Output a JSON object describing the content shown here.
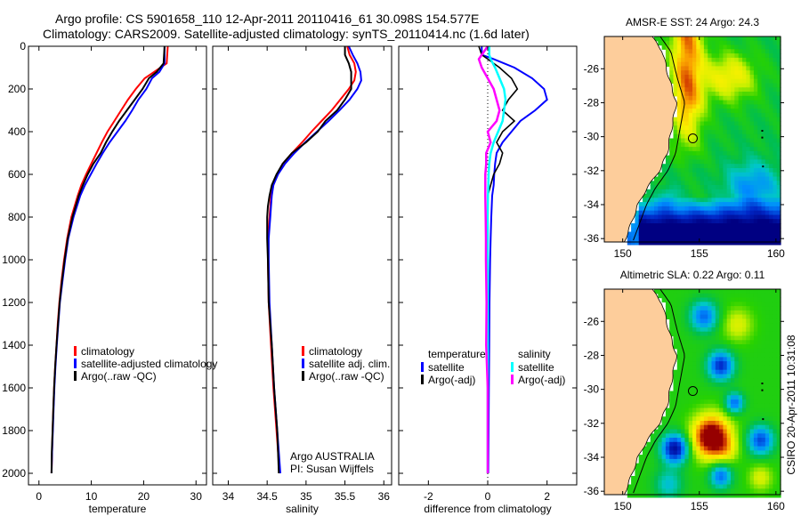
{
  "header": {
    "line1": "Argo profile: CS 5901658_110 12-Apr-2011 20110416_61 30.098S 154.577E",
    "line2": "Climatology: CARS2009. Satellite-adjusted climatology: synTS_20110414.nc (1.6d later)"
  },
  "colors": {
    "climatology": "#ff0000",
    "satellite": "#0000ff",
    "argo": "#000000",
    "sal_satellite": "#00ffff",
    "sal_argo": "#ff00ff",
    "land": "#fdcd9b"
  },
  "chart_data": [
    {
      "type": "line",
      "id": "temperature",
      "title": "",
      "xlabel": "temperature",
      "ylabel": "",
      "xlim": [
        -2,
        32
      ],
      "ylim": [
        2050,
        0
      ],
      "xticks": [
        "0",
        "10",
        "20",
        "30"
      ],
      "yticks": [
        "0",
        "200",
        "400",
        "600",
        "800",
        "1000",
        "1200",
        "1400",
        "1600",
        "1800",
        "2000"
      ],
      "depth": [
        0,
        80,
        120,
        150,
        200,
        250,
        300,
        350,
        400,
        450,
        500,
        550,
        600,
        650,
        700,
        800,
        900,
        1000,
        1100,
        1200,
        1300,
        1400,
        1500,
        1600,
        1700,
        1800,
        1900,
        2000
      ],
      "series": [
        {
          "name": "climatology",
          "values": [
            24.6,
            24.4,
            22.0,
            20.2,
            18.5,
            17.0,
            15.7,
            14.4,
            13.1,
            12.0,
            11.0,
            10.0,
            9.0,
            8.1,
            7.4,
            6.2,
            5.4,
            4.8,
            4.3,
            3.9,
            3.6,
            3.35,
            3.1,
            2.9,
            2.75,
            2.6,
            2.5,
            2.4
          ]
        },
        {
          "name": "satellite-adjusted climatology",
          "values": [
            24.0,
            24.0,
            23.0,
            21.6,
            20.5,
            19.0,
            17.8,
            16.5,
            15.0,
            13.5,
            12.2,
            11.0,
            9.9,
            8.8,
            7.9,
            6.6,
            5.6,
            5.0,
            4.5,
            4.0,
            3.7,
            3.4,
            3.15,
            2.95,
            2.8,
            2.65,
            2.5,
            2.4
          ]
        },
        {
          "name": "Argo(..raw -QC)",
          "values": [
            24.0,
            23.8,
            22.5,
            21.0,
            19.8,
            18.3,
            16.8,
            15.3,
            14.0,
            12.8,
            11.8,
            10.4,
            9.3,
            8.4,
            7.6,
            6.4,
            5.5,
            4.9,
            4.4,
            3.95,
            3.65,
            3.35,
            3.1,
            2.9,
            2.75,
            2.6,
            2.45,
            2.4
          ]
        }
      ],
      "legend": [
        "climatology",
        "satellite-adjusted climatology",
        "Argo(..raw -QC)"
      ],
      "legend_position": "center-right"
    },
    {
      "type": "line",
      "id": "salinity",
      "xlabel": "salinity",
      "xlim": [
        33.8,
        36.1
      ],
      "ylim": [
        2050,
        0
      ],
      "xticks": [
        "34",
        "34.5",
        "35",
        "35.5",
        "36"
      ],
      "depth": [
        0,
        40,
        80,
        120,
        160,
        200,
        250,
        300,
        350,
        400,
        450,
        500,
        550,
        600,
        650,
        700,
        750,
        800,
        900,
        1000,
        1200,
        1400,
        1600,
        1800,
        2000
      ],
      "series": [
        {
          "name": "climatology",
          "values": [
            35.53,
            35.56,
            35.62,
            35.64,
            35.62,
            35.55,
            35.44,
            35.33,
            35.2,
            35.07,
            34.95,
            34.82,
            34.7,
            34.63,
            34.58,
            34.55,
            34.54,
            34.53,
            34.51,
            34.51,
            34.52,
            34.55,
            34.58,
            34.62,
            34.66
          ]
        },
        {
          "name": "satellite adj. clim.",
          "values": [
            35.55,
            35.6,
            35.66,
            35.7,
            35.71,
            35.66,
            35.56,
            35.43,
            35.29,
            35.14,
            34.99,
            34.85,
            34.73,
            34.64,
            34.58,
            34.56,
            34.55,
            34.54,
            34.52,
            34.52,
            34.53,
            34.56,
            34.59,
            34.63,
            34.67
          ]
        },
        {
          "name": "Argo(..raw -QC)",
          "values": [
            35.5,
            35.5,
            35.55,
            35.58,
            35.58,
            35.58,
            35.5,
            35.4,
            35.25,
            35.15,
            35.0,
            34.82,
            34.7,
            34.62,
            34.56,
            34.53,
            34.51,
            34.5,
            34.5,
            34.51,
            34.52,
            34.56,
            34.59,
            34.63,
            34.65
          ]
        }
      ],
      "legend": [
        "climatology",
        "satellite adj. clim.",
        "Argo(..raw -QC)"
      ],
      "annotation": [
        "Argo AUSTRALIA",
        "PI: Susan Wijffels"
      ]
    },
    {
      "type": "line",
      "id": "difference",
      "xlabel": "difference from climatology",
      "xlim": [
        -3,
        3
      ],
      "ylim": [
        2050,
        0
      ],
      "xticks": [
        "-2",
        "0",
        "2"
      ],
      "depth": [
        0,
        40,
        60,
        100,
        150,
        200,
        250,
        300,
        350,
        400,
        450,
        500,
        550,
        600,
        650,
        700,
        800,
        900,
        1000,
        1200,
        1400,
        1600,
        1800,
        2000
      ],
      "series": [
        {
          "name": "temperature satellite",
          "group": "temperature",
          "values": [
            -0.2,
            -0.2,
            0.2,
            0.9,
            1.5,
            1.9,
            2.0,
            1.6,
            1.1,
            0.8,
            0.5,
            0.3,
            0.25,
            0.22,
            0.2,
            0.15,
            0.12,
            0.1,
            0.08,
            0.06,
            0.05,
            0.04,
            0.03,
            0.02
          ]
        },
        {
          "name": "temperature Argo(-adj)",
          "group": "temperature",
          "values": [
            -0.3,
            -0.2,
            0.0,
            0.4,
            0.8,
            1.0,
            0.7,
            0.5,
            0.9,
            0.5,
            0.3,
            0.5,
            0.4,
            0.2,
            0.1,
            0.0,
            0.0,
            -0.01,
            0.0,
            0.0,
            0.0,
            0.0,
            0.0,
            0.0
          ]
        },
        {
          "name": "salinity satellite",
          "group": "salinity",
          "values": [
            0.05,
            0.05,
            0.1,
            0.25,
            0.4,
            0.55,
            0.6,
            0.55,
            0.5,
            0.35,
            0.2,
            0.1,
            0.05,
            0.03,
            0.02,
            0.01,
            0.0,
            0.0,
            0.0,
            0.0,
            0.0,
            0.0,
            0.0,
            0.0
          ]
        },
        {
          "name": "salinity Argo(-adj)",
          "group": "salinity",
          "values": [
            0.0,
            -0.2,
            -0.3,
            -0.2,
            0.0,
            0.2,
            0.3,
            0.4,
            0.3,
            0.0,
            0.1,
            -0.05,
            -0.05,
            -0.08,
            -0.08,
            -0.08,
            -0.07,
            -0.06,
            -0.06,
            -0.04,
            -0.05,
            0.0,
            0.0,
            0.0
          ]
        }
      ],
      "legend": {
        "temperature": {
          "heading": "temperature",
          "items": [
            "satellite",
            "Argo(-adj)"
          ]
        },
        "salinity": {
          "heading": "salinity",
          "items": [
            "satellite",
            "Argo(-adj)"
          ]
        }
      },
      "zero_line": "dotted"
    },
    {
      "type": "heatmap",
      "id": "sst_map",
      "title": "AMSR-E SST: 24 Argo: 24.3",
      "xlim": [
        148.8,
        160.3
      ],
      "ylim": [
        -36.2,
        -24.1
      ],
      "xticks": [
        "150",
        "155",
        "160"
      ],
      "yticks": [
        "-26",
        "-28",
        "-30",
        "-32",
        "-34",
        "-36"
      ],
      "marker": {
        "lon": 154.577,
        "lat": -30.098
      }
    },
    {
      "type": "heatmap",
      "id": "sla_map",
      "title": "Altimetric SLA: 0.22 Argo: 0.11",
      "xlim": [
        148.8,
        160.3
      ],
      "ylim": [
        -36.2,
        -24.1
      ],
      "xticks": [
        "150",
        "155",
        "160"
      ],
      "yticks": [
        "-26",
        "-28",
        "-30",
        "-32",
        "-34",
        "-36"
      ],
      "marker": {
        "lon": 154.577,
        "lat": -30.098
      }
    }
  ],
  "footer_stamp": "CSIRO 20-Apr-2011 10:31:08"
}
